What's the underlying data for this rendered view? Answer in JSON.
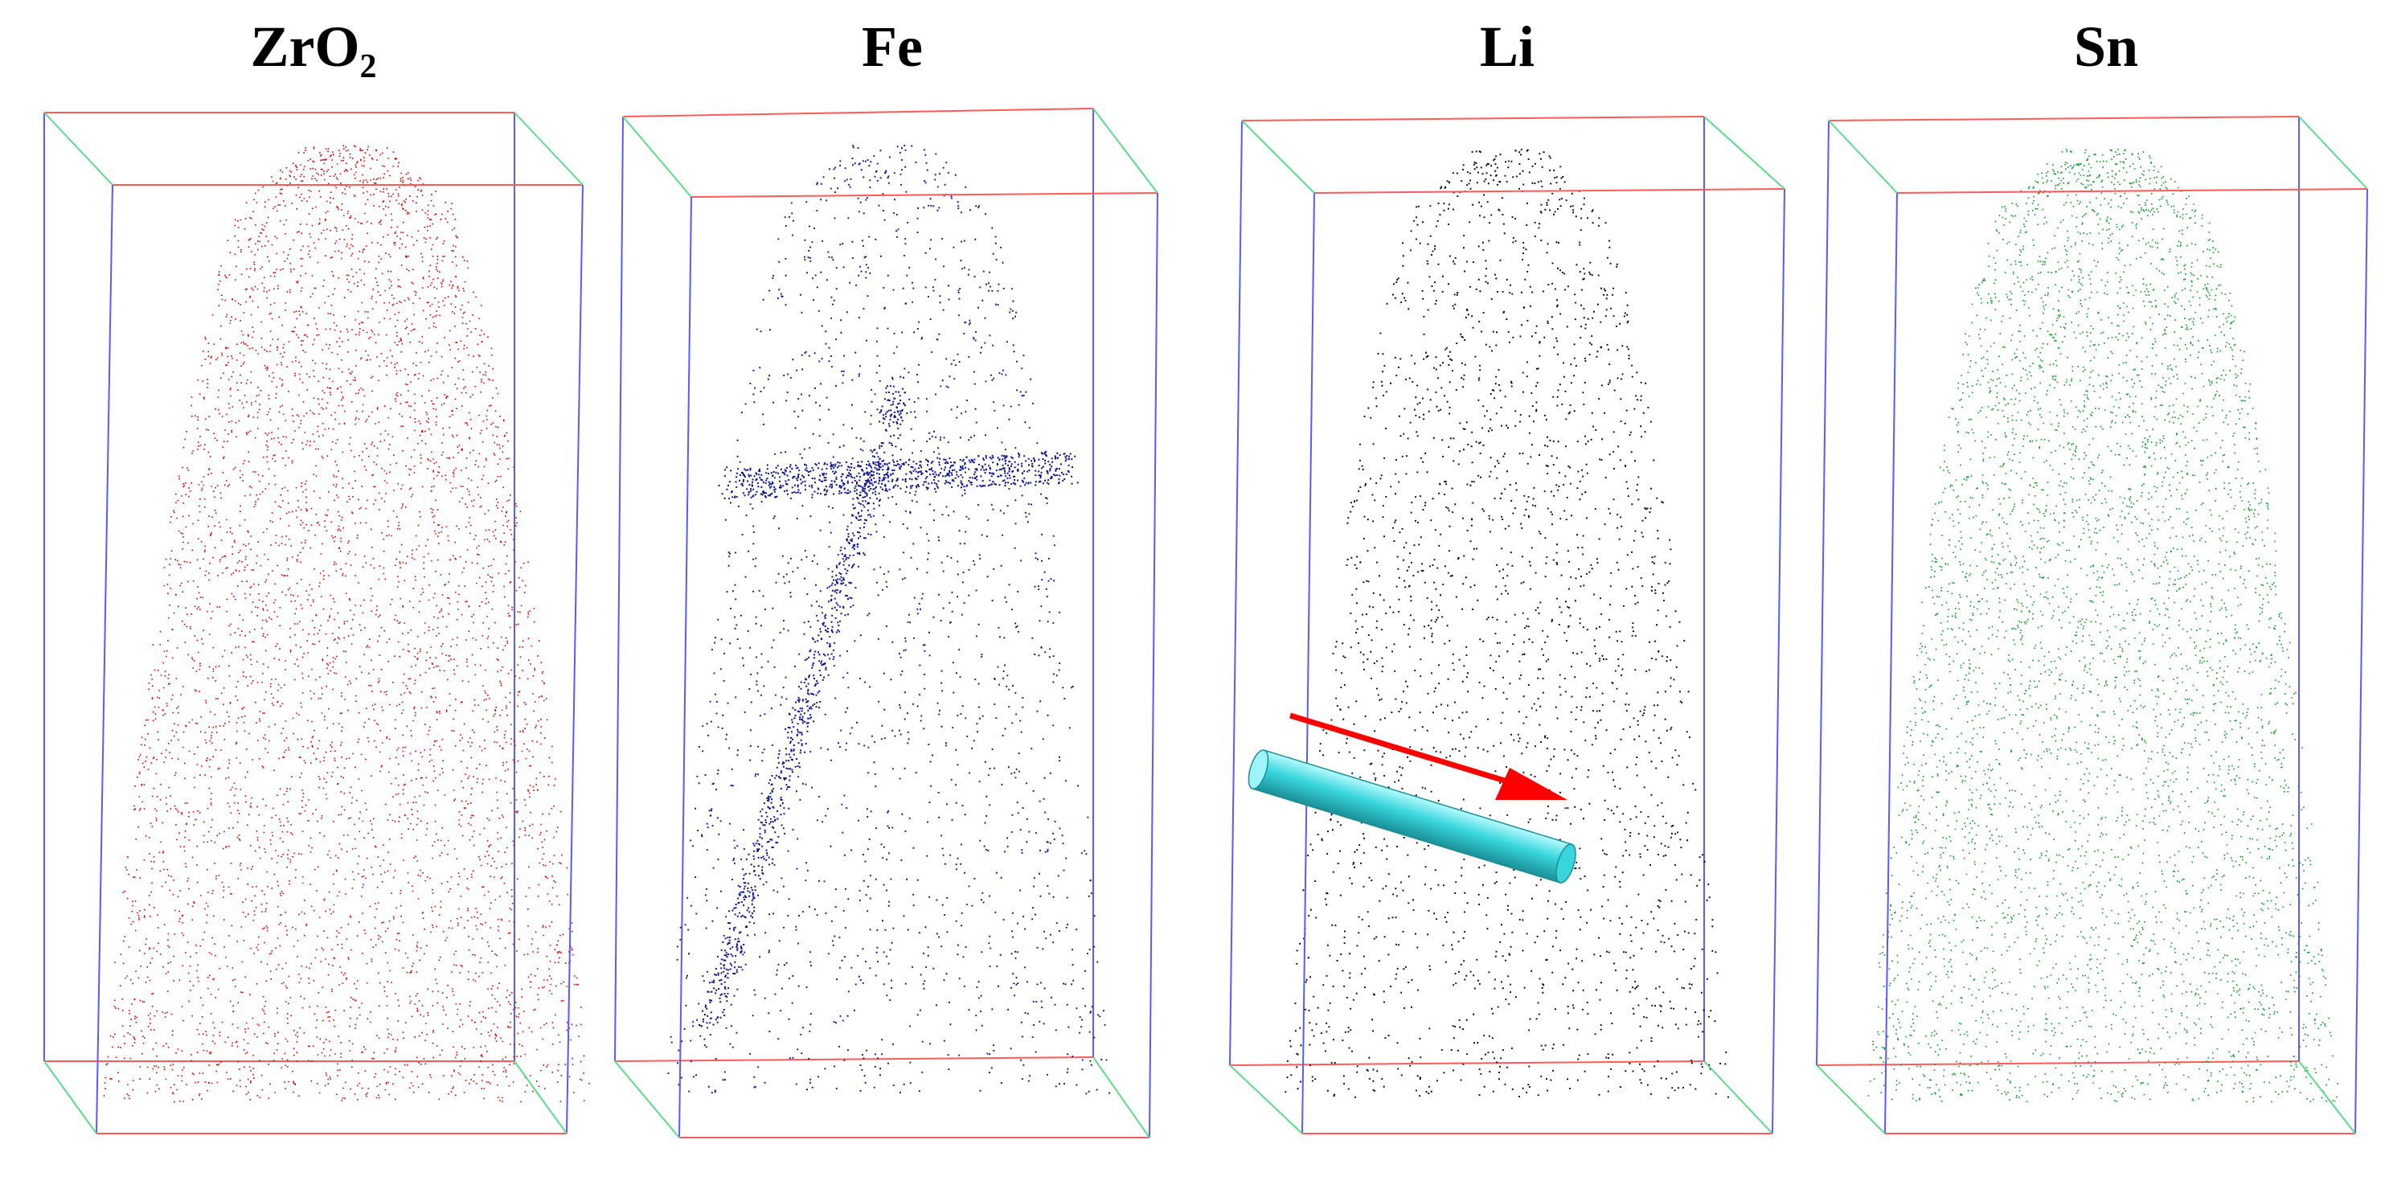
{
  "panels": [
    {
      "id": "zro2",
      "title_main": "ZrO",
      "title_sub": "2",
      "color": "#d40000",
      "density": 1.0
    },
    {
      "id": "fe",
      "title_main": "Fe",
      "title_sub": "",
      "color": "#0a1090",
      "density": 0.35
    },
    {
      "id": "li",
      "title_main": "Li",
      "title_sub": "",
      "color": "#000000",
      "density": 0.45
    },
    {
      "id": "sn",
      "title_main": "Sn",
      "title_sub": "",
      "color": "#009a1a",
      "density": 1.0
    }
  ],
  "box_edge_colors": {
    "front_back": "#ff5a5a",
    "vertical": "#5a5aff",
    "depth": "#5adc8a"
  },
  "annotation": {
    "arrow_color": "#ff0000",
    "cylinder_color": "#38d6dc"
  }
}
